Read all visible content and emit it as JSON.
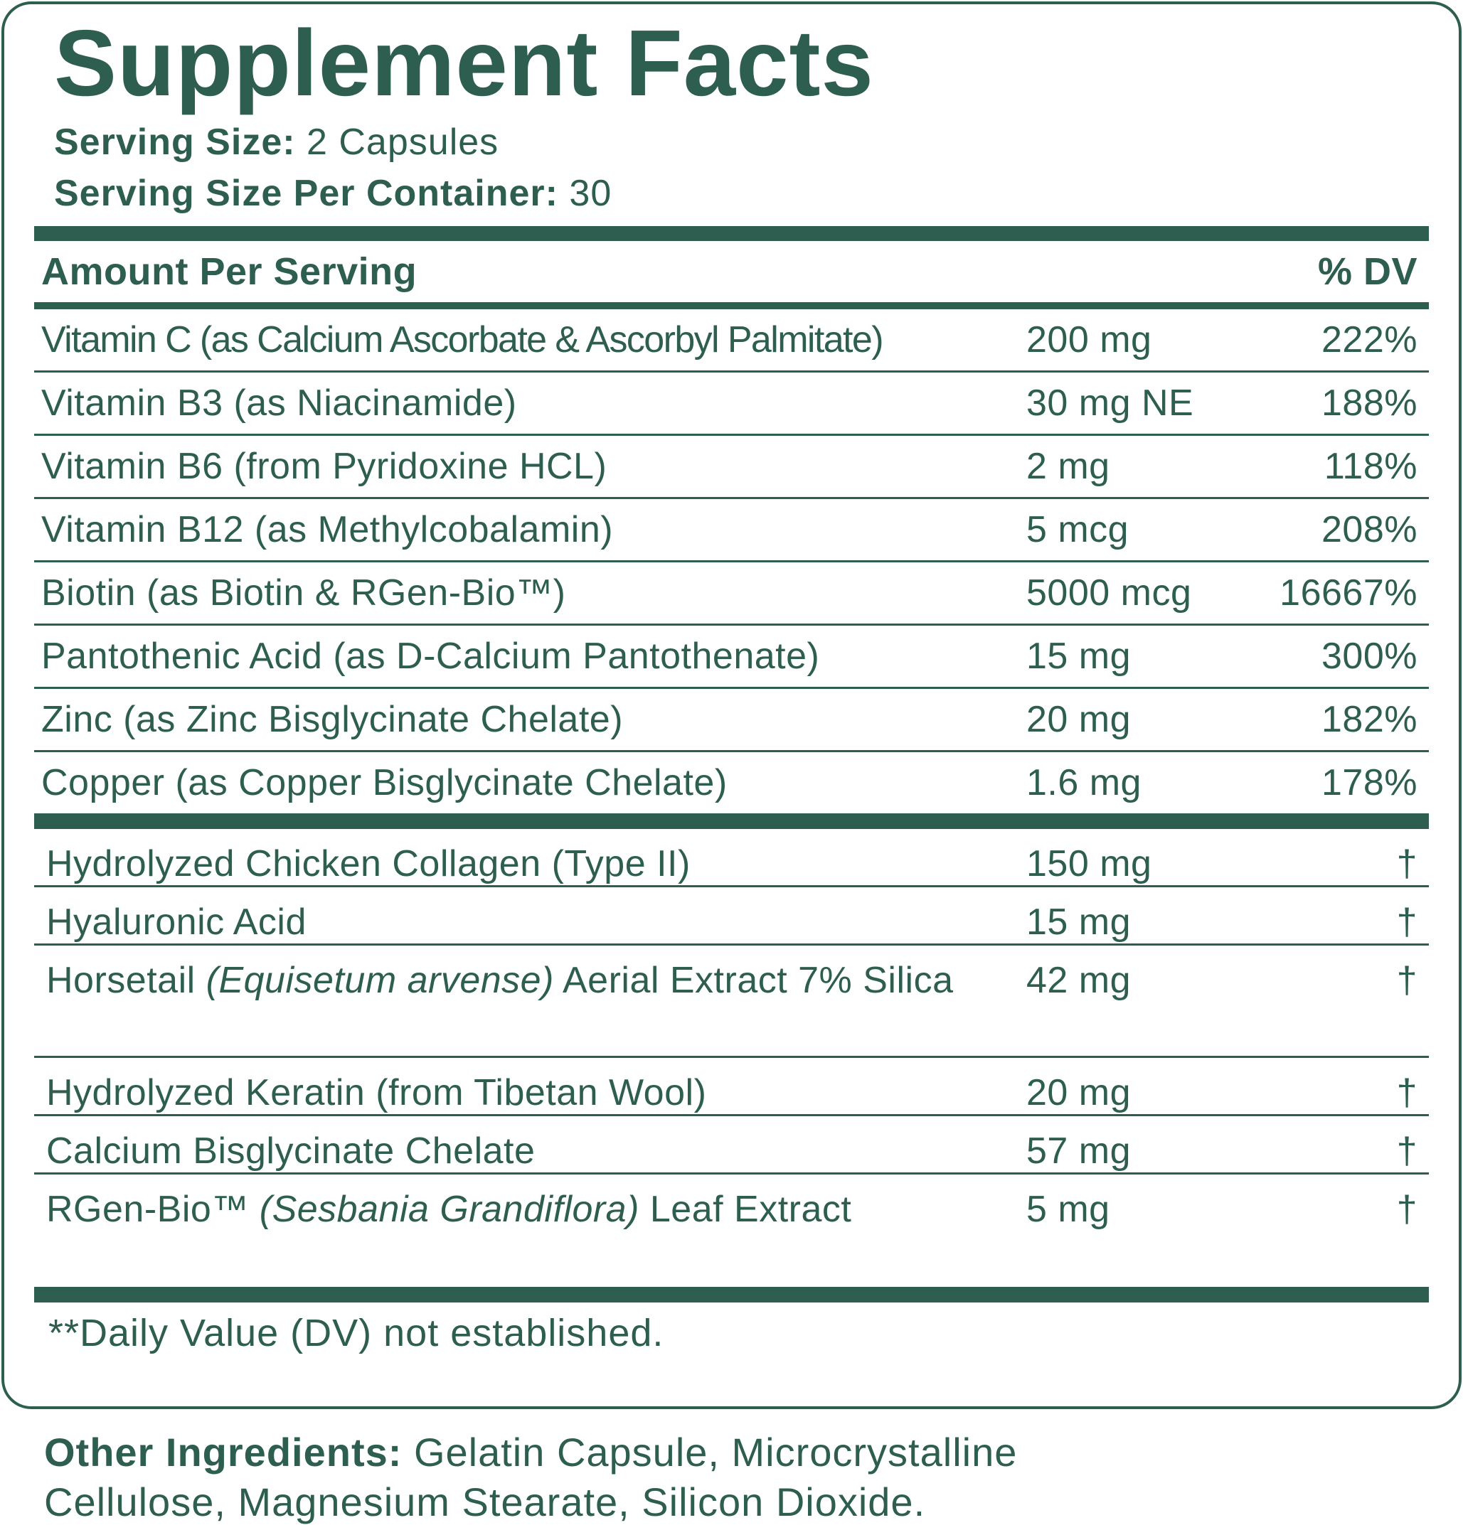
{
  "title": "Supplement Facts",
  "serving": [
    {
      "label": "Serving Size:",
      "value": "2 Capsules"
    },
    {
      "label": "Serving Size Per Container:",
      "value": "30"
    }
  ],
  "header": {
    "amount": "Amount Per Serving",
    "dv": "% DV"
  },
  "vitamins": [
    {
      "name": "Vitamin C (as Calcium Ascorbate & Ascorbyl Palmitate)",
      "amount": "200 mg",
      "dv": "222%"
    },
    {
      "name": "Vitamin B3 (as Niacinamide)",
      "amount": "30 mg NE",
      "dv": "188%"
    },
    {
      "name": "Vitamin B6 (from Pyridoxine HCL)",
      "amount": "2 mg",
      "dv": "118%"
    },
    {
      "name": "Vitamin B12 (as Methylcobalamin)",
      "amount": "5 mcg",
      "dv": "208%"
    },
    {
      "name": "Biotin (as Biotin & RGen-Bio™)",
      "amount": "5000 mcg",
      "dv": "16667%"
    },
    {
      "name": "Pantothenic Acid (as D-Calcium Pantothenate)",
      "amount": "15 mg",
      "dv": "300%"
    },
    {
      "name": "Zinc (as Zinc Bisglycinate Chelate)",
      "amount": "20 mg",
      "dv": "182%"
    },
    {
      "name": "Copper (as Copper Bisglycinate Chelate)",
      "amount": "1.6 mg",
      "dv": "178%"
    }
  ],
  "others": [
    {
      "name": "Hydrolyzed Chicken Collagen (Type II)",
      "amount": "150 mg",
      "dv": "†"
    },
    {
      "name": "Hyaluronic Acid",
      "amount": "15 mg",
      "dv": "†"
    },
    {
      "name": "Horsetail",
      "latin": "(Equisetum arvense)",
      "name_rest": "Aerial Extract 7% Silica",
      "amount": "42 mg",
      "dv": "†"
    },
    {
      "name": "Hydrolyzed Keratin (from Tibetan Wool)",
      "amount": "20 mg",
      "dv": "†"
    },
    {
      "name": "Calcium Bisglycinate Chelate",
      "amount": "57 mg",
      "dv": "†"
    },
    {
      "name": "RGen-Bio™",
      "latin": "(Sesbania Grandiflora)",
      "name_rest": "Leaf Extract",
      "amount": "5 mg",
      "dv": "†"
    }
  ],
  "footnote": "**Daily Value (DV) not established.",
  "other_ingredients": {
    "label": "Other Ingredients:",
    "text": "Gelatin Capsule, Microcrystalline Cellulose, Magnesium Stearate, Silicon Dioxide."
  }
}
